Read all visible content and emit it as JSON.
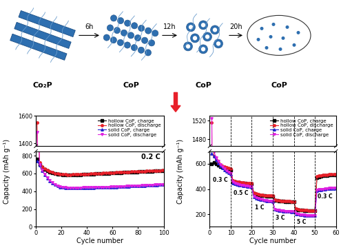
{
  "diagram": {
    "stages": [
      "Co₂P",
      "CoP",
      "CoP",
      "CoP"
    ],
    "steps": [
      "6h",
      "12h",
      "20h"
    ]
  },
  "chart_data": [
    {
      "type": "line",
      "xlabel": "Cycle number",
      "ylabel": "Capacity (mAh g⁻¹)",
      "annotation": "0.2 C",
      "legend": "upper right",
      "xlim": [
        0,
        100
      ],
      "xticks": [
        0,
        20,
        40,
        60,
        80,
        100
      ],
      "ylim": [
        0,
        1600
      ],
      "y_break": [
        850,
        1380
      ],
      "yticks": [
        0,
        200,
        400,
        600,
        800,
        1400,
        1600
      ],
      "x": [
        1,
        3,
        5,
        7,
        9,
        11,
        13,
        15,
        17,
        19,
        21,
        23,
        25,
        27,
        29,
        31,
        33,
        35,
        37,
        39,
        41,
        43,
        45,
        47,
        49,
        51,
        53,
        55,
        57,
        59,
        61,
        63,
        65,
        67,
        69,
        71,
        73,
        75,
        77,
        79,
        81,
        83,
        85,
        87,
        89,
        91,
        93,
        95,
        97,
        99
      ],
      "series": [
        {
          "name": "hollow CoP, charge",
          "color": "#000000",
          "marker": "square",
          "line_style": "solid",
          "values": [
            760,
            700,
            668,
            645,
            630,
            617,
            606,
            598,
            592,
            588,
            586,
            584,
            583,
            583,
            584,
            585,
            586,
            587,
            588,
            590,
            591,
            593,
            594,
            596,
            597,
            599,
            600,
            602,
            603,
            605,
            606,
            607,
            609,
            610,
            611,
            613,
            614,
            615,
            617,
            618,
            619,
            621,
            622,
            623,
            625,
            626,
            627,
            629,
            630,
            632
          ]
        },
        {
          "name": "hollow CoP, discharge",
          "color": "#e8202a",
          "marker": "circle",
          "line_style": "solid",
          "values": [
            1550,
            720,
            680,
            655,
            640,
            625,
            612,
            603,
            597,
            593,
            590,
            588,
            587,
            587,
            588,
            589,
            590,
            591,
            592,
            594,
            595,
            597,
            598,
            600,
            601,
            603,
            604,
            606,
            607,
            609,
            610,
            611,
            613,
            614,
            615,
            617,
            618,
            619,
            621,
            622,
            623,
            625,
            626,
            627,
            629,
            630,
            631,
            633,
            634,
            636
          ]
        },
        {
          "name": "solid CoP, charge",
          "color": "#2020d0",
          "marker": "triangle_up",
          "line_style": "solid",
          "values": [
            740,
            690,
            632,
            584,
            545,
            515,
            491,
            472,
            457,
            447,
            442,
            439,
            437,
            436,
            436,
            436,
            437,
            437,
            438,
            438,
            439,
            439,
            440,
            441,
            441,
            442,
            443,
            444,
            445,
            446,
            447,
            448,
            449,
            451,
            452,
            453,
            455,
            456,
            457,
            459,
            460,
            462,
            463,
            465,
            466,
            468,
            469,
            471,
            473,
            475
          ]
        },
        {
          "name": "solid CoP, discharge",
          "color": "#e020e0",
          "marker": "triangle_down",
          "line_style": "solid",
          "values": [
            1480,
            700,
            640,
            590,
            550,
            520,
            495,
            475,
            460,
            450,
            445,
            442,
            440,
            439,
            439,
            439,
            440,
            440,
            441,
            441,
            442,
            442,
            443,
            444,
            444,
            445,
            446,
            447,
            448,
            449,
            450,
            451,
            452,
            454,
            455,
            456,
            458,
            459,
            460,
            462,
            463,
            465,
            466,
            468,
            469,
            471,
            472,
            474,
            476,
            478
          ]
        }
      ]
    },
    {
      "type": "line",
      "xlabel": "Cycle number",
      "ylabel": "Capacity (mAh g⁻¹)",
      "legend": "upper right",
      "rates": [
        {
          "label": "0.3 C",
          "start": 0,
          "end": 10
        },
        {
          "label": "0.5 C",
          "start": 10,
          "end": 20
        },
        {
          "label": "1 C",
          "start": 20,
          "end": 30
        },
        {
          "label": "3 C",
          "start": 30,
          "end": 40
        },
        {
          "label": "5 C",
          "start": 40,
          "end": 50
        },
        {
          "label": "0.3 C",
          "start": 50,
          "end": 60
        }
      ],
      "xlim": [
        0,
        60
      ],
      "xticks": [
        0,
        10,
        20,
        30,
        40,
        50,
        60
      ],
      "ylim": [
        100,
        1530
      ],
      "y_break": [
        700,
        1465
      ],
      "yticks": [
        200,
        400,
        600,
        1480,
        1520
      ],
      "x": [
        1,
        2,
        3,
        4,
        5,
        6,
        7,
        8,
        9,
        10,
        11,
        12,
        13,
        14,
        15,
        16,
        17,
        18,
        19,
        20,
        21,
        22,
        23,
        24,
        25,
        26,
        27,
        28,
        29,
        30,
        31,
        32,
        33,
        34,
        35,
        36,
        37,
        38,
        39,
        40,
        41,
        42,
        43,
        44,
        45,
        46,
        47,
        48,
        49,
        50,
        51,
        52,
        53,
        54,
        55,
        56,
        57,
        58,
        59,
        60
      ],
      "series": [
        {
          "name": "hollow CoP, charge",
          "color": "#000000",
          "marker": "square",
          "line_style": "solid",
          "values": [
            600,
            610,
            600,
            590,
            580,
            572,
            566,
            560,
            555,
            550,
            460,
            455,
            452,
            450,
            448,
            446,
            444,
            443,
            442,
            441,
            362,
            356,
            353,
            350,
            348,
            346,
            345,
            344,
            343,
            342,
            312,
            308,
            305,
            303,
            302,
            301,
            300,
            299,
            298,
            298,
            240,
            235,
            232,
            231,
            230,
            229,
            228,
            228,
            227,
            227,
            492,
            498,
            502,
            505,
            507,
            509,
            511,
            512,
            513,
            514
          ]
        },
        {
          "name": "hollow CoP, discharge",
          "color": "#e8202a",
          "marker": "circle",
          "line_style": "solid",
          "values": [
            1515,
            660,
            630,
            610,
            595,
            585,
            578,
            572,
            566,
            560,
            470,
            462,
            458,
            455,
            452,
            450,
            448,
            446,
            445,
            444,
            370,
            362,
            358,
            355,
            352,
            350,
            349,
            348,
            347,
            346,
            318,
            312,
            309,
            307,
            305,
            304,
            303,
            302,
            301,
            300,
            245,
            238,
            235,
            233,
            232,
            231,
            230,
            230,
            229,
            229,
            500,
            505,
            508,
            510,
            512,
            514,
            515,
            516,
            517,
            518
          ]
        },
        {
          "name": "solid CoP, charge",
          "color": "#2020d0",
          "marker": "triangle_up",
          "line_style": "solid",
          "values": [
            680,
            660,
            630,
            605,
            585,
            567,
            553,
            540,
            530,
            520,
            448,
            440,
            435,
            431,
            428,
            425,
            422,
            420,
            418,
            416,
            335,
            326,
            321,
            317,
            313,
            310,
            307,
            305,
            303,
            301,
            237,
            232,
            229,
            226,
            224,
            222,
            221,
            220,
            219,
            218,
            202,
            198,
            195,
            193,
            191,
            190,
            189,
            188,
            188,
            187,
            385,
            390,
            394,
            397,
            399,
            401,
            403,
            404,
            405,
            407
          ]
        },
        {
          "name": "solid CoP, discharge",
          "color": "#e020e0",
          "marker": "triangle_down",
          "line_style": "solid",
          "values": [
            1525,
            700,
            650,
            620,
            595,
            575,
            560,
            545,
            535,
            525,
            455,
            445,
            440,
            435,
            432,
            428,
            425,
            422,
            420,
            418,
            340,
            330,
            325,
            320,
            316,
            312,
            309,
            306,
            304,
            302,
            240,
            235,
            231,
            228,
            226,
            224,
            223,
            222,
            221,
            220,
            205,
            200,
            197,
            195,
            193,
            192,
            191,
            190,
            190,
            189,
            390,
            395,
            398,
            400,
            402,
            404,
            406,
            407,
            408,
            410
          ]
        }
      ]
    }
  ]
}
